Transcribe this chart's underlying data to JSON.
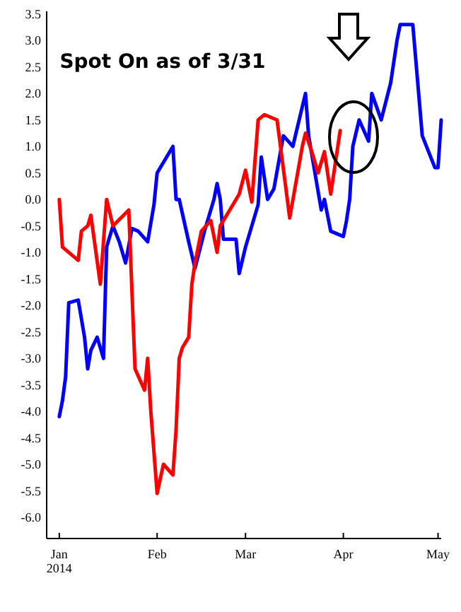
{
  "chart_data": {
    "type": "line",
    "annotations": [
      "Spot On as of 3/31"
    ],
    "xlim": [
      "2013-12-28",
      "2014-05-02"
    ],
    "xticks": [
      {
        "value": "2014-01-01",
        "label": "Jan\n2014"
      },
      {
        "value": "2014-02-01",
        "label": "Feb"
      },
      {
        "value": "2014-03-01",
        "label": "Mar"
      },
      {
        "value": "2014-04-01",
        "label": "Apr"
      },
      {
        "value": "2014-05-01",
        "label": "May"
      }
    ],
    "ylim": [
      -6.4,
      3.55
    ],
    "yticks": [
      {
        "value": -6,
        "label": "-6.0"
      },
      -5.5,
      {
        "value": -5,
        "label": "-5.0"
      },
      -4.5,
      {
        "value": -4,
        "label": "-4.0"
      },
      -3.5,
      {
        "value": -3,
        "label": "-3.0"
      },
      -2.5,
      {
        "value": -2,
        "label": "-2.0"
      },
      -1.5,
      {
        "value": -1,
        "label": "-1.0"
      },
      -0.5,
      {
        "value": 0,
        "label": "0.0"
      },
      0.5,
      {
        "value": 1,
        "label": "1.0"
      },
      1.5,
      {
        "value": 2,
        "label": "2.0"
      },
      2.5,
      {
        "value": 3,
        "label": "3.0"
      },
      3.5
    ],
    "grid": false,
    "line_style": "solid",
    "marker": "none",
    "series": [
      {
        "color": "#0000ff",
        "x": [
          "2014-01-01",
          "2014-01-02",
          "2014-01-03",
          "2014-01-04",
          "2014-01-07",
          "2014-01-09",
          "2014-01-10",
          "2014-01-11",
          "2014-01-13",
          "2014-01-15",
          "2014-01-16",
          "2014-01-18",
          "2014-01-20",
          "2014-01-22",
          "2014-01-24",
          "2014-01-26",
          "2014-01-29",
          "2014-01-31",
          "2014-02-01",
          "2014-02-04",
          "2014-02-06",
          "2014-02-07",
          "2014-02-08",
          "2014-02-11",
          "2014-02-13",
          "2014-02-16",
          "2014-02-19",
          "2014-02-20",
          "2014-02-21",
          "2014-02-22",
          "2014-02-26",
          "2014-02-27",
          "2014-03-01",
          "2014-03-04",
          "2014-03-05",
          "2014-03-06",
          "2014-03-08",
          "2014-03-10",
          "2014-03-13",
          "2014-03-16",
          "2014-03-18",
          "2014-03-20",
          "2014-03-21",
          "2014-03-23",
          "2014-03-25",
          "2014-03-26",
          "2014-03-28",
          "2014-04-01",
          "2014-04-02",
          "2014-04-03",
          "2014-04-04",
          "2014-04-06",
          "2014-04-09",
          "2014-04-10",
          "2014-04-13",
          "2014-04-16",
          "2014-04-18",
          "2014-04-19",
          "2014-04-23",
          "2014-04-26",
          "2014-04-30",
          "2014-05-01",
          "2014-05-02"
        ],
        "values": [
          -4.1,
          -3.8,
          -3.35,
          -1.95,
          -1.9,
          -2.6,
          -3.2,
          -2.85,
          -2.6,
          -3.0,
          -0.9,
          -0.5,
          -0.8,
          -1.2,
          -0.55,
          -0.6,
          -0.8,
          -0.1,
          0.5,
          0.8,
          1.0,
          0.0,
          0.0,
          -0.8,
          -1.3,
          -0.6,
          0.0,
          0.3,
          0.0,
          -0.75,
          -0.75,
          -1.4,
          -0.9,
          -0.3,
          -0.1,
          0.8,
          0.0,
          0.2,
          1.2,
          1.0,
          1.5,
          2.0,
          1.2,
          0.5,
          -0.2,
          0.0,
          -0.6,
          -0.7,
          -0.4,
          0.0,
          1.0,
          1.5,
          1.1,
          2.0,
          1.5,
          2.2,
          3.0,
          3.3,
          3.3,
          1.2,
          0.6,
          0.6,
          1.5
        ]
      },
      {
        "color": "#ff0000",
        "x": [
          "2014-01-01",
          "2014-01-02",
          "2014-01-07",
          "2014-01-08",
          "2014-01-10",
          "2014-01-11",
          "2014-01-14",
          "2014-01-16",
          "2014-01-18",
          "2014-01-23",
          "2014-01-25",
          "2014-01-28",
          "2014-01-29",
          "2014-01-30",
          "2014-02-01",
          "2014-02-03",
          "2014-02-06",
          "2014-02-07",
          "2014-02-08",
          "2014-02-09",
          "2014-02-11",
          "2014-02-12",
          "2014-02-13",
          "2014-02-15",
          "2014-02-18",
          "2014-02-20",
          "2014-02-21",
          "2014-02-24",
          "2014-02-27",
          "2014-03-01",
          "2014-03-03",
          "2014-03-05",
          "2014-03-07",
          "2014-03-11",
          "2014-03-15",
          "2014-03-19",
          "2014-03-20",
          "2014-03-22",
          "2014-03-24",
          "2014-03-26",
          "2014-03-28",
          "2014-03-31"
        ],
        "values": [
          0.0,
          -0.9,
          -1.15,
          -0.6,
          -0.5,
          -0.3,
          -1.6,
          0.0,
          -0.5,
          -0.2,
          -3.2,
          -3.6,
          -3.0,
          -4.0,
          -5.55,
          -5.0,
          -5.2,
          -4.35,
          -3.0,
          -2.8,
          -2.6,
          -1.6,
          -1.2,
          -0.6,
          -0.4,
          -1.0,
          -0.5,
          -0.2,
          0.1,
          0.55,
          -0.05,
          1.5,
          1.6,
          1.5,
          -0.35,
          1.0,
          1.25,
          0.9,
          0.5,
          0.9,
          0.1,
          1.3
        ]
      }
    ]
  }
}
